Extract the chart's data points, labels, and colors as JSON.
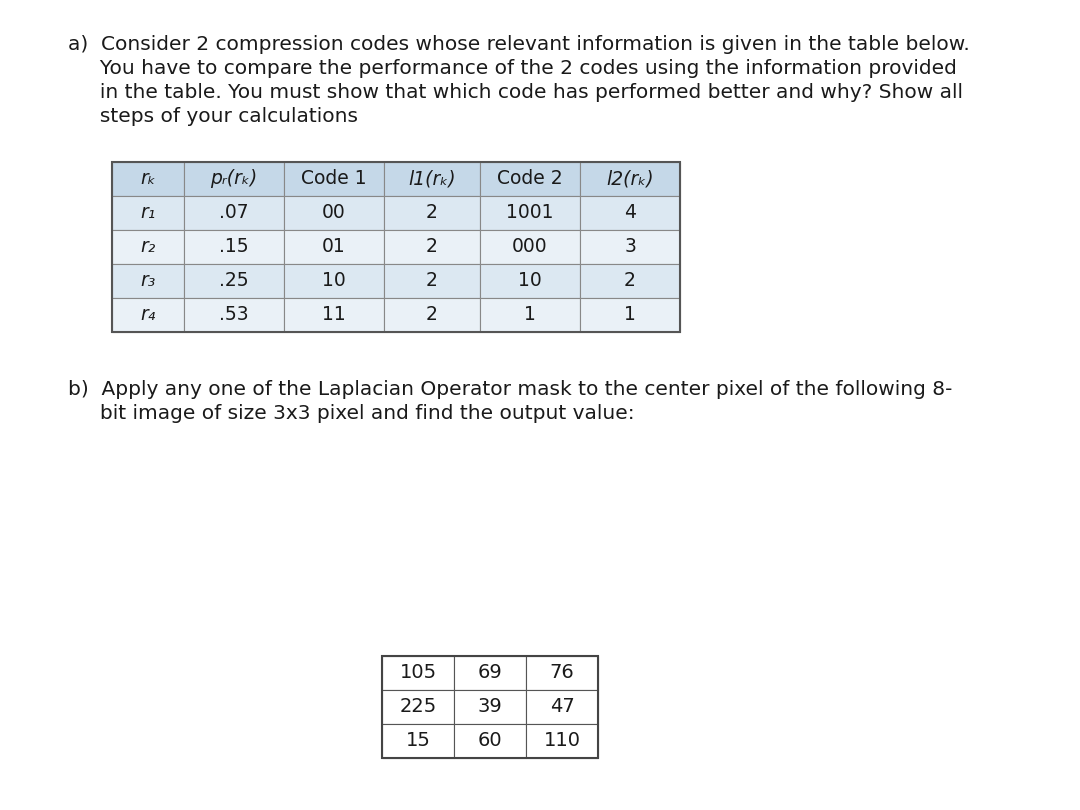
{
  "title_a_line1": "a)  Consider 2 compression codes whose relevant information is given in the table below.",
  "title_a_line2": "     You have to compare the performance of the 2 codes using the information provided",
  "title_a_line3": "     in the table. You must show that which code has performed better and why? Show all",
  "title_a_line4": "     steps of your calculations",
  "table1_headers": [
    "rₖ",
    "pᵣ(rₖ)",
    "Code 1",
    "l1(rₖ)",
    "Code 2",
    "l2(rₖ)"
  ],
  "table1_rows": [
    [
      "r₁",
      ".07",
      "00",
      "2",
      "1001",
      "4"
    ],
    [
      "r₂",
      ".15",
      "01",
      "2",
      "000",
      "3"
    ],
    [
      "r₃",
      ".25",
      "10",
      "2",
      "10",
      "2"
    ],
    [
      "r₄",
      ".53",
      "11",
      "2",
      "1",
      "1"
    ]
  ],
  "title_b_line1": "b)  Apply any one of the Laplacian Operator mask to the center pixel of the following 8-",
  "title_b_line2": "     bit image of size 3x3 pixel and find the output value:",
  "table2_rows": [
    [
      "105",
      "69",
      "76"
    ],
    [
      "225",
      "39",
      "47"
    ],
    [
      "15",
      "60",
      "110"
    ]
  ],
  "bg_color": "#ffffff",
  "table_header_bg": "#c5d8e8",
  "table_row_bg1": "#dce8f2",
  "table_row_bg2": "#eaf1f7",
  "text_color": "#1a1a1a",
  "font_size_text": 14.5,
  "font_size_table": 13.5,
  "font_size_table2": 14
}
